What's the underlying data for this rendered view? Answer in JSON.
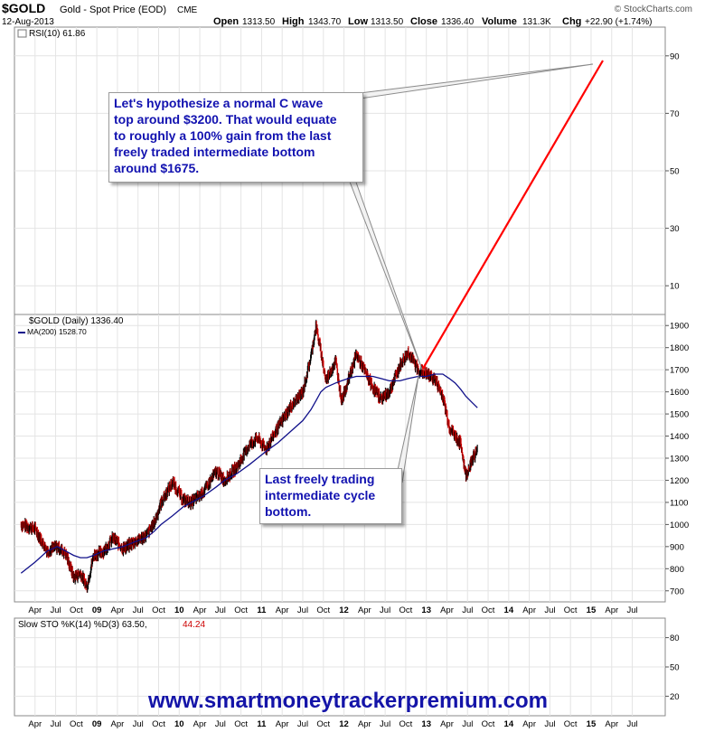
{
  "header": {
    "symbol": "$GOLD",
    "name": "Gold - Spot Price (EOD)",
    "exchange": "CME",
    "date": "12-Aug-2013",
    "watermark": "© StockCharts.com",
    "open_label": "Open",
    "open": "1313.50",
    "high_label": "High",
    "high": "1343.70",
    "low_label": "Low",
    "low": "1313.50",
    "close_label": "Close",
    "close": "1336.40",
    "volume_label": "Volume",
    "volume": "131.3K",
    "chg_label": "Chg",
    "chg": "+22.90 (+1.74%)"
  },
  "callouts": {
    "top": "Let's hypothesize a normal C wave\ntop around $3200. That would equate\nto roughly a 100% gain from the last\nfreely traded intermediate bottom\naround $1675.",
    "bottom": "Last freely trading\nintermediate cycle\nbottom."
  },
  "footer_url": "www.smartmoneytrackerpremium.com",
  "colors": {
    "price": "#000000",
    "down_bar": "#cc0000",
    "ma": "#10108a",
    "projection": "#ff0000",
    "text_blue": "#1212b0",
    "grid": "#e4e4e4",
    "stoch_d": "#cc0000"
  },
  "chart_data": [
    {
      "type": "line",
      "panel": "RSI",
      "legend": "RSI(10) 61.86",
      "y_ticks": [
        10,
        30,
        50,
        70,
        90
      ],
      "ylim": [
        0,
        100
      ],
      "note": "indicator line not visible in this panel"
    },
    {
      "type": "line",
      "panel": "price",
      "legend_price": "$GOLD (Daily) 1336.40",
      "legend_ma": "MA(200) 1528.70",
      "y_ticks": [
        700,
        800,
        900,
        1000,
        1100,
        1200,
        1300,
        1400,
        1500,
        1600,
        1700,
        1800,
        1900
      ],
      "ylim": [
        650,
        1950
      ],
      "x_ticks": [
        "Apr",
        "Jul",
        "Oct",
        "09",
        "Apr",
        "Jul",
        "Oct",
        "10",
        "Apr",
        "Jul",
        "Oct",
        "11",
        "Apr",
        "Jul",
        "Oct",
        "12",
        "Apr",
        "Jul",
        "Oct",
        "13",
        "Apr",
        "Jul",
        "Oct",
        "14",
        "Apr",
        "Jul",
        "Oct",
        "15",
        "Apr",
        "Jul"
      ],
      "x_tick_bold": [
        "09",
        "10",
        "11",
        "12",
        "13",
        "14",
        "15"
      ],
      "x": [
        2008.08,
        2008.25,
        2008.4,
        2008.52,
        2008.62,
        2008.72,
        2008.8,
        2008.88,
        2008.96,
        2009.08,
        2009.2,
        2009.32,
        2009.45,
        2009.6,
        2009.7,
        2009.78,
        2009.92,
        2010.05,
        2010.15,
        2010.3,
        2010.45,
        2010.55,
        2010.7,
        2010.85,
        2010.95,
        2011.05,
        2011.2,
        2011.35,
        2011.5,
        2011.6,
        2011.66,
        2011.72,
        2011.78,
        2011.9,
        2011.97,
        2012.05,
        2012.15,
        2012.35,
        2012.45,
        2012.55,
        2012.68,
        2012.78,
        2012.9,
        2013.0,
        2013.1,
        2013.2,
        2013.28,
        2013.35,
        2013.42,
        2013.48,
        2013.56,
        2013.62
      ],
      "series": [
        {
          "name": "$GOLD (Daily)",
          "values": [
            1000,
            980,
            880,
            900,
            870,
            760,
            780,
            720,
            860,
            880,
            940,
            890,
            920,
            950,
            1010,
            1100,
            1190,
            1110,
            1100,
            1150,
            1240,
            1200,
            1260,
            1360,
            1390,
            1340,
            1440,
            1530,
            1600,
            1760,
            1900,
            1780,
            1650,
            1740,
            1560,
            1650,
            1770,
            1620,
            1570,
            1600,
            1720,
            1780,
            1700,
            1680,
            1660,
            1580,
            1440,
            1400,
            1360,
            1220,
            1300,
            1336
          ]
        },
        {
          "name": "MA(200)",
          "values": [
            780,
            830,
            880,
            900,
            880,
            860,
            850,
            850,
            860,
            880,
            890,
            900,
            920,
            940,
            970,
            1000,
            1040,
            1080,
            1100,
            1130,
            1170,
            1200,
            1230,
            1270,
            1300,
            1330,
            1370,
            1420,
            1470,
            1520,
            1560,
            1600,
            1620,
            1640,
            1650,
            1660,
            1670,
            1670,
            1660,
            1650,
            1650,
            1660,
            1670,
            1670,
            1680,
            1680,
            1660,
            1640,
            1610,
            1580,
            1550,
            1528
          ]
        }
      ],
      "projection": {
        "name": "projected C wave",
        "from": [
          2012.95,
          1700
        ],
        "to": [
          2015.0,
          3200
        ]
      }
    },
    {
      "type": "line",
      "panel": "stochastic",
      "legend_label": "Slow STO %K(14) %D(3) 63.50,",
      "legend_value": "44.24",
      "y_ticks": [
        20,
        50,
        80
      ],
      "ylim": [
        0,
        100
      ],
      "note": "indicator lines not visible in this panel"
    }
  ]
}
